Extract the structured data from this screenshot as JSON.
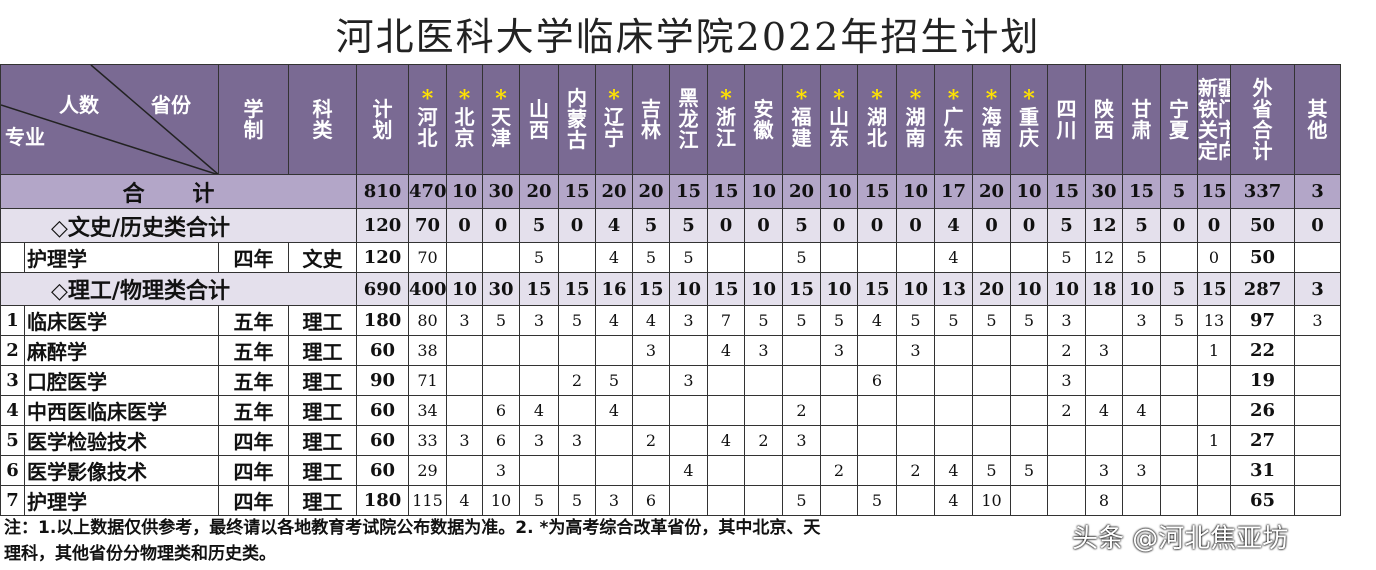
{
  "title": "河北医科大学临床学院2022年招生计划",
  "header": {
    "corner_count": "人数",
    "corner_prov": "省份",
    "corner_major": "专业",
    "xuezhi": "学制",
    "kelei": "科类",
    "jihua": "计划",
    "provinces": [
      {
        "name": "河北",
        "star": true
      },
      {
        "name": "北京",
        "star": true
      },
      {
        "name": "天津",
        "star": true
      },
      {
        "name": "山西",
        "star": false
      },
      {
        "name": "内蒙古",
        "star": false
      },
      {
        "name": "辽宁",
        "star": true
      },
      {
        "name": "吉林",
        "star": false
      },
      {
        "name": "黑龙江",
        "star": false
      },
      {
        "name": "浙江",
        "star": true
      },
      {
        "name": "安徽",
        "star": false
      },
      {
        "name": "福建",
        "star": true
      },
      {
        "name": "山东",
        "star": true
      },
      {
        "name": "湖北",
        "star": true
      },
      {
        "name": "湖南",
        "star": true
      },
      {
        "name": "广东",
        "star": true
      },
      {
        "name": "海南",
        "star": true
      },
      {
        "name": "重庆",
        "star": true
      },
      {
        "name": "四川",
        "star": false
      },
      {
        "name": "陕西",
        "star": false
      },
      {
        "name": "甘肃",
        "star": false
      },
      {
        "name": "宁夏",
        "star": false
      },
      {
        "name": "新疆铁门关市定向",
        "star": false
      },
      {
        "name": "外省合计",
        "star": false
      },
      {
        "name": "其他",
        "star": false
      }
    ],
    "star_glyph": "*"
  },
  "total": {
    "label": "合 计",
    "plan": "810",
    "values": [
      "470",
      "10",
      "30",
      "20",
      "15",
      "20",
      "20",
      "15",
      "15",
      "10",
      "20",
      "10",
      "15",
      "10",
      "17",
      "20",
      "10",
      "15",
      "30",
      "15",
      "5",
      "15",
      "337",
      "3"
    ]
  },
  "wenshi_total": {
    "label": "◇文史/历史类合计",
    "plan": "120",
    "values": [
      "70",
      "0",
      "0",
      "5",
      "0",
      "4",
      "5",
      "5",
      "0",
      "0",
      "5",
      "0",
      "0",
      "0",
      "4",
      "0",
      "0",
      "5",
      "12",
      "5",
      "0",
      "0",
      "50",
      "0"
    ]
  },
  "wenshi_rows": [
    {
      "idx": "",
      "name": "护理学",
      "years": "四年",
      "type": "文史",
      "plan": "120",
      "values": [
        "70",
        "",
        "",
        "5",
        "",
        "4",
        "5",
        "5",
        "",
        "",
        "5",
        "",
        "",
        "",
        "4",
        "",
        "",
        "5",
        "12",
        "5",
        "",
        "0",
        "50",
        ""
      ]
    }
  ],
  "ligong_total": {
    "label": "◇理工/物理类合计",
    "plan": "690",
    "values": [
      "400",
      "10",
      "30",
      "15",
      "15",
      "16",
      "15",
      "10",
      "15",
      "10",
      "15",
      "10",
      "15",
      "10",
      "13",
      "20",
      "10",
      "10",
      "18",
      "10",
      "5",
      "15",
      "287",
      "3"
    ]
  },
  "ligong_rows": [
    {
      "idx": "1",
      "name": "临床医学",
      "years": "五年",
      "type": "理工",
      "plan": "180",
      "values": [
        "80",
        "3",
        "5",
        "3",
        "5",
        "4",
        "4",
        "3",
        "7",
        "5",
        "5",
        "5",
        "4",
        "5",
        "5",
        "5",
        "5",
        "3",
        "",
        "3",
        "5",
        "13",
        "97",
        "3"
      ]
    },
    {
      "idx": "2",
      "name": "麻醉学",
      "years": "五年",
      "type": "理工",
      "plan": "60",
      "values": [
        "38",
        "",
        "",
        "",
        "",
        "",
        "3",
        "",
        "4",
        "3",
        "",
        "3",
        "",
        "3",
        "",
        "",
        "",
        "2",
        "3",
        "",
        "",
        "1",
        "22",
        ""
      ]
    },
    {
      "idx": "3",
      "name": "口腔医学",
      "years": "五年",
      "type": "理工",
      "plan": "90",
      "values": [
        "71",
        "",
        "",
        "",
        "2",
        "5",
        "",
        "3",
        "",
        "",
        "",
        "",
        "6",
        "",
        "",
        "",
        "",
        "3",
        "",
        "",
        "",
        "",
        "19",
        ""
      ]
    },
    {
      "idx": "4",
      "name": "中西医临床医学",
      "years": "五年",
      "type": "理工",
      "plan": "60",
      "values": [
        "34",
        "",
        "6",
        "4",
        "",
        "4",
        "",
        "",
        "",
        "",
        "2",
        "",
        "",
        "",
        "",
        "",
        "",
        "2",
        "4",
        "4",
        "",
        "",
        "26",
        ""
      ]
    },
    {
      "idx": "5",
      "name": "医学检验技术",
      "years": "四年",
      "type": "理工",
      "plan": "60",
      "values": [
        "33",
        "3",
        "6",
        "3",
        "3",
        "",
        "2",
        "",
        "4",
        "2",
        "3",
        "",
        "",
        "",
        "",
        "",
        "",
        "",
        "",
        "",
        "",
        "1",
        "27",
        ""
      ]
    },
    {
      "idx": "6",
      "name": "医学影像技术",
      "years": "四年",
      "type": "理工",
      "plan": "60",
      "values": [
        "29",
        "",
        "3",
        "",
        "",
        "",
        "",
        "4",
        "",
        "",
        "",
        "2",
        "",
        "2",
        "4",
        "5",
        "5",
        "",
        "3",
        "3",
        "",
        "",
        "31",
        ""
      ]
    },
    {
      "idx": "7",
      "name": "护理学",
      "years": "四年",
      "type": "理工",
      "plan": "180",
      "values": [
        "115",
        "4",
        "10",
        "5",
        "5",
        "3",
        "6",
        "",
        "",
        "",
        "5",
        "",
        "5",
        "",
        "4",
        "10",
        "",
        "",
        "8",
        "",
        "",
        "",
        "65",
        ""
      ]
    }
  ],
  "note_line1": "注：1.以上数据仅供参考，最终请以各地教育考试院公布数据为准。2.  *为高考综合改革省份，其中北京、天",
  "note_line2": "理科，其他省份分物理类和历史类。",
  "watermark": "头条 @河北焦亚坊"
}
